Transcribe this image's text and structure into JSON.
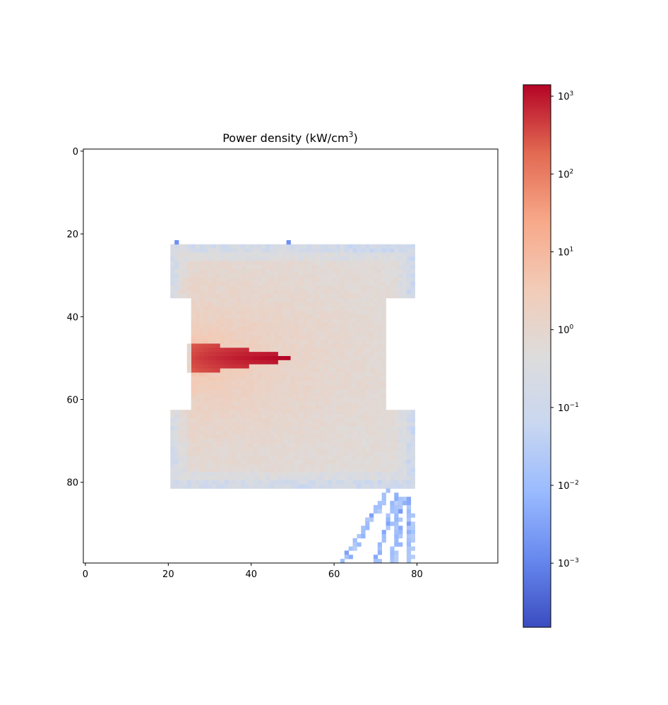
{
  "chart_data": {
    "type": "heatmap",
    "title_main": "Power density (kW/cm",
    "title_sup": "3",
    "title_end": ")",
    "x_ticks": [
      0,
      20,
      40,
      60,
      80
    ],
    "y_ticks": [
      0,
      20,
      40,
      60,
      80
    ],
    "xlim": [
      -0.5,
      99.5
    ],
    "ylim": [
      99.5,
      -0.5
    ],
    "grid": false,
    "colormap": "coolwarm",
    "scale": "log",
    "colorbar": {
      "range": [
        0.00015,
        1400
      ],
      "ticks": [
        {
          "value": 0.001,
          "base": "10",
          "exp": "−3"
        },
        {
          "value": 0.01,
          "base": "10",
          "exp": "−2"
        },
        {
          "value": 0.1,
          "base": "10",
          "exp": "−1"
        },
        {
          "value": 1,
          "base": "10",
          "exp": "0"
        },
        {
          "value": 10,
          "base": "10",
          "exp": "1"
        },
        {
          "value": 100,
          "base": "10",
          "exp": "2"
        },
        {
          "value": 1000,
          "base": "10",
          "exp": "3"
        }
      ],
      "colors": [
        "#3b4cc0",
        "#6788ee",
        "#9abbff",
        "#c9d7f0",
        "#dddcdc",
        "#f2cbb7",
        "#f7a889",
        "#e26952",
        "#b40426"
      ]
    },
    "region": {
      "x_range": [
        21,
        79
      ],
      "y_range": [
        23,
        81
      ],
      "notch_left": {
        "x_range": [
          21,
          25
        ],
        "y_range": [
          36,
          62
        ]
      },
      "notch_right": {
        "x_range": [
          73,
          79
        ],
        "y_range": [
          36,
          62
        ]
      },
      "outlier_pixels": [
        [
          22,
          22
        ],
        [
          49,
          22
        ]
      ]
    },
    "hot_spot": {
      "x_range": [
        25,
        49
      ],
      "y_center": 50,
      "peak": 1400
    },
    "stray_traces": [
      {
        "x_start": 73,
        "y_start": 82,
        "x_end": 62,
        "y_end": 99
      },
      {
        "x_start": 75,
        "y_start": 83,
        "x_end": 70,
        "y_end": 99
      },
      {
        "x_start": 76,
        "y_start": 84,
        "x_end": 74,
        "y_end": 99
      },
      {
        "x_start": 78,
        "y_start": 84,
        "x_end": 78,
        "y_end": 99
      }
    ]
  }
}
